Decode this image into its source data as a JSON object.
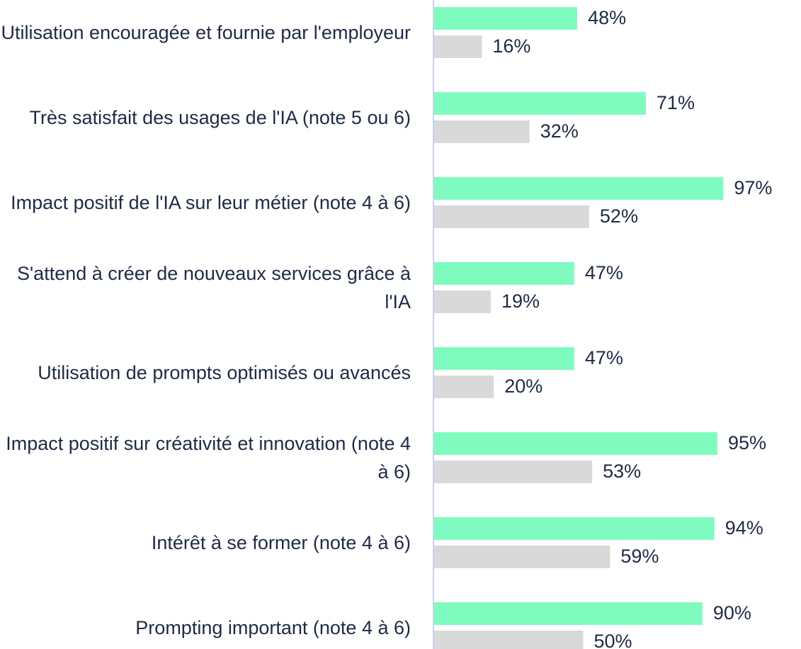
{
  "chart_data": {
    "type": "bar",
    "orientation": "horizontal",
    "categories": [
      "Utilisation encouragée et fournie par l'employeur",
      "Très satisfait des usages de l'IA (note 5 ou 6)",
      "Impact positif de l'IA sur leur métier (note 4 à 6)",
      "S'attend à créer de nouveaux services grâce à l'IA",
      "Utilisation de prompts optimisés ou avancés",
      "Impact positif sur créativité et innovation (note 4 à 6)",
      "Intérêt à se former (note 4 à 6)",
      "Prompting important (note 4 à 6)"
    ],
    "series": [
      {
        "color": "#80fbbf",
        "values": [
          48,
          71,
          97,
          47,
          47,
          95,
          94,
          90
        ],
        "value_labels": [
          "48%",
          "71%",
          "97%",
          "47%",
          "47%",
          "95%",
          "94%",
          "90%"
        ]
      },
      {
        "color": "#d9d9d9",
        "values": [
          16,
          32,
          52,
          19,
          20,
          53,
          59,
          50
        ],
        "value_labels": [
          "16%",
          "32%",
          "52%",
          "19%",
          "20%",
          "53%",
          "59%",
          "50%"
        ]
      }
    ],
    "xlim": [
      0,
      100
    ]
  }
}
